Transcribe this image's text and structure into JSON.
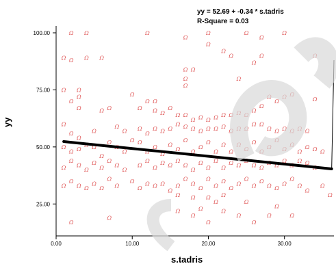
{
  "chart_data": {
    "type": "scatter",
    "title_lines": [
      "yy = 52.69 + -0.34 * s.tadris",
      "R-Square = 0.03"
    ],
    "xlabel": "s.tadris",
    "ylabel": "yy",
    "xlim": [
      0,
      36.5
    ],
    "ylim": [
      11,
      103
    ],
    "xticks": [
      "0.00",
      "10.00",
      "20.00",
      "30.00"
    ],
    "xtick_values": [
      0,
      10,
      20,
      30
    ],
    "yticks": [
      "25.00",
      "50.00",
      "75.00",
      "100.00"
    ],
    "ytick_values": [
      25,
      50,
      75,
      100
    ],
    "marker_glyph": "Ω",
    "marker_color": "#e05a5a",
    "fit_line": {
      "intercept": 52.69,
      "slope": -0.34,
      "x_range": [
        1,
        36.2
      ],
      "color": "#000000"
    },
    "points": [
      [
        2,
        100
      ],
      [
        4,
        100
      ],
      [
        12,
        100
      ],
      [
        20,
        100
      ],
      [
        25,
        100
      ],
      [
        30,
        100
      ],
      [
        27,
        98
      ],
      [
        17,
        98
      ],
      [
        20,
        95
      ],
      [
        1,
        89
      ],
      [
        2,
        88
      ],
      [
        4,
        89
      ],
      [
        6,
        89
      ],
      [
        23,
        90
      ],
      [
        27,
        90
      ],
      [
        34,
        90
      ],
      [
        17,
        84
      ],
      [
        18,
        84
      ],
      [
        17,
        80
      ],
      [
        17,
        77
      ],
      [
        24,
        80
      ],
      [
        26,
        87
      ],
      [
        22,
        92
      ],
      [
        1,
        75
      ],
      [
        3,
        75
      ],
      [
        3,
        72
      ],
      [
        2,
        70
      ],
      [
        3,
        67
      ],
      [
        6,
        66
      ],
      [
        7,
        67
      ],
      [
        10,
        73
      ],
      [
        12,
        70
      ],
      [
        13,
        70
      ],
      [
        11,
        67
      ],
      [
        13,
        66
      ],
      [
        14,
        65
      ],
      [
        15,
        67
      ],
      [
        16,
        64
      ],
      [
        17,
        64
      ],
      [
        18,
        62
      ],
      [
        19,
        63
      ],
      [
        20,
        62
      ],
      [
        21,
        63
      ],
      [
        22,
        64
      ],
      [
        23,
        64
      ],
      [
        24,
        65
      ],
      [
        25,
        64
      ],
      [
        26,
        66
      ],
      [
        27,
        68
      ],
      [
        28,
        72
      ],
      [
        29,
        70
      ],
      [
        30,
        72
      ],
      [
        31,
        73
      ],
      [
        34,
        71
      ],
      [
        1,
        60
      ],
      [
        2,
        56
      ],
      [
        3,
        54
      ],
      [
        5,
        57
      ],
      [
        8,
        59
      ],
      [
        9,
        57
      ],
      [
        11,
        58
      ],
      [
        12,
        56
      ],
      [
        13,
        58
      ],
      [
        14,
        57
      ],
      [
        15,
        58
      ],
      [
        16,
        60
      ],
      [
        17,
        59
      ],
      [
        18,
        58
      ],
      [
        19,
        57
      ],
      [
        20,
        58
      ],
      [
        21,
        58
      ],
      [
        22,
        59
      ],
      [
        23,
        57
      ],
      [
        24,
        58
      ],
      [
        25,
        58
      ],
      [
        26,
        60
      ],
      [
        27,
        60
      ],
      [
        28,
        58
      ],
      [
        29,
        57
      ],
      [
        30,
        58
      ],
      [
        31,
        57
      ],
      [
        32,
        58
      ],
      [
        33,
        57
      ],
      [
        1,
        50
      ],
      [
        2,
        48
      ],
      [
        3,
        49
      ],
      [
        4,
        51
      ],
      [
        5,
        50
      ],
      [
        6,
        46
      ],
      [
        7,
        52
      ],
      [
        8,
        50
      ],
      [
        9,
        48
      ],
      [
        10,
        53
      ],
      [
        11,
        52
      ],
      [
        12,
        48
      ],
      [
        13,
        50
      ],
      [
        14,
        47
      ],
      [
        15,
        51
      ],
      [
        16,
        49
      ],
      [
        17,
        53
      ],
      [
        18,
        48
      ],
      [
        19,
        50
      ],
      [
        20,
        52
      ],
      [
        21,
        48
      ],
      [
        22,
        51
      ],
      [
        23,
        48
      ],
      [
        24,
        51
      ],
      [
        25,
        49
      ],
      [
        26,
        52
      ],
      [
        27,
        48
      ],
      [
        28,
        50
      ],
      [
        29,
        53
      ],
      [
        30,
        49
      ],
      [
        31,
        51
      ],
      [
        32,
        48
      ],
      [
        33,
        50
      ],
      [
        34,
        49
      ],
      [
        35,
        48
      ],
      [
        1,
        41
      ],
      [
        2,
        44
      ],
      [
        3,
        42
      ],
      [
        4,
        40
      ],
      [
        5,
        43
      ],
      [
        6,
        41
      ],
      [
        7,
        44
      ],
      [
        8,
        42
      ],
      [
        9,
        40
      ],
      [
        11,
        42
      ],
      [
        12,
        44
      ],
      [
        13,
        41
      ],
      [
        14,
        43
      ],
      [
        15,
        42
      ],
      [
        16,
        44
      ],
      [
        17,
        42
      ],
      [
        18,
        40
      ],
      [
        19,
        43
      ],
      [
        20,
        41
      ],
      [
        21,
        44
      ],
      [
        22,
        41
      ],
      [
        23,
        43
      ],
      [
        24,
        42
      ],
      [
        25,
        44
      ],
      [
        26,
        42
      ],
      [
        27,
        41
      ],
      [
        28,
        43
      ],
      [
        29,
        42
      ],
      [
        30,
        44
      ],
      [
        31,
        42
      ],
      [
        32,
        44
      ],
      [
        33,
        43
      ],
      [
        34,
        41
      ],
      [
        1,
        33
      ],
      [
        2,
        35
      ],
      [
        3,
        33
      ],
      [
        4,
        32
      ],
      [
        5,
        34
      ],
      [
        6,
        32
      ],
      [
        7,
        36
      ],
      [
        8,
        33
      ],
      [
        10,
        35
      ],
      [
        11,
        32
      ],
      [
        12,
        34
      ],
      [
        13,
        33
      ],
      [
        14,
        34
      ],
      [
        15,
        31
      ],
      [
        16,
        33
      ],
      [
        17,
        36
      ],
      [
        18,
        34
      ],
      [
        19,
        32
      ],
      [
        20,
        36
      ],
      [
        21,
        33
      ],
      [
        22,
        35
      ],
      [
        23,
        32
      ],
      [
        24,
        34
      ],
      [
        25,
        36
      ],
      [
        26,
        33
      ],
      [
        27,
        35
      ],
      [
        28,
        33
      ],
      [
        29,
        32
      ],
      [
        30,
        34
      ],
      [
        31,
        36
      ],
      [
        32,
        33
      ],
      [
        33,
        31
      ],
      [
        35,
        33
      ],
      [
        36,
        29
      ],
      [
        2,
        17
      ],
      [
        7,
        19
      ],
      [
        16,
        22
      ],
      [
        18,
        20
      ],
      [
        20,
        17
      ],
      [
        22,
        22
      ],
      [
        24,
        20
      ],
      [
        26,
        17
      ],
      [
        28,
        20
      ],
      [
        19,
        23
      ],
      [
        21,
        26
      ],
      [
        25,
        26
      ],
      [
        29,
        24
      ],
      [
        31,
        20
      ],
      [
        20,
        28
      ],
      [
        22,
        29
      ],
      [
        16,
        29
      ],
      [
        18,
        28
      ]
    ]
  }
}
